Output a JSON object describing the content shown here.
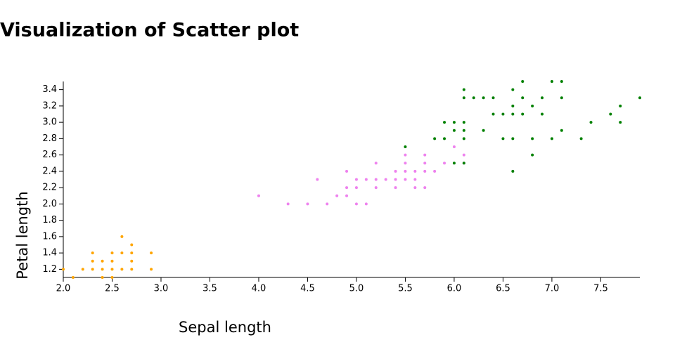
{
  "chart_data": {
    "type": "scatter",
    "title": "Visualization of Scatter plot",
    "x_label": "Sepal length",
    "y_label": "Petal length",
    "xlim": [
      2.0,
      7.9
    ],
    "ylim": [
      1.1,
      3.5
    ],
    "xticks": [
      {
        "value": 2,
        "label": "2.0"
      },
      2.5,
      {
        "value": 3,
        "label": "3.0"
      },
      3.5,
      {
        "value": 4,
        "label": "4.0"
      },
      4.5,
      {
        "value": 5,
        "label": "5.0"
      },
      5.5,
      {
        "value": 6,
        "label": "6.0"
      },
      6.5,
      {
        "value": 7,
        "label": "7.0"
      },
      7.5
    ],
    "yticks": [
      1.2,
      1.4,
      1.6,
      1.8,
      {
        "value": 2,
        "label": "2.0"
      },
      2.2,
      2.4,
      2.6,
      2.8,
      {
        "value": 3,
        "label": "3.0"
      },
      3.2,
      3.4
    ],
    "series": [
      {
        "color": "#ffa500",
        "x": [
          2.0,
          2.1,
          2.2,
          2.3,
          2.3,
          2.3,
          2.4,
          2.4,
          2.4,
          2.5,
          2.5,
          2.5,
          2.5,
          2.6,
          2.6,
          2.6,
          2.7,
          2.7,
          2.7,
          2.7,
          2.9,
          2.9
        ],
        "values": [
          1.2,
          1.1,
          1.2,
          1.4,
          1.3,
          1.2,
          1.3,
          1.2,
          1.1,
          1.4,
          1.3,
          1.2,
          1.1,
          1.6,
          1.4,
          1.2,
          1.5,
          1.4,
          1.3,
          1.2,
          1.4,
          1.2
        ]
      },
      {
        "color": "#ee82ee",
        "x": [
          4.0,
          4.3,
          4.5,
          4.6,
          4.7,
          4.8,
          4.9,
          4.9,
          4.9,
          5.0,
          5.0,
          5.0,
          5.1,
          5.1,
          5.2,
          5.2,
          5.2,
          5.3,
          5.4,
          5.4,
          5.4,
          5.5,
          5.5,
          5.5,
          5.5,
          5.6,
          5.6,
          5.6,
          5.7,
          5.7,
          5.7,
          5.7,
          5.8,
          5.9,
          6.0,
          6.1,
          6.1
        ],
        "values": [
          2.1,
          2.0,
          2.0,
          2.3,
          2.0,
          2.1,
          2.4,
          2.2,
          2.1,
          2.3,
          2.2,
          2.0,
          2.3,
          2.0,
          2.5,
          2.3,
          2.2,
          2.3,
          2.4,
          2.3,
          2.2,
          2.6,
          2.5,
          2.4,
          2.3,
          2.4,
          2.3,
          2.2,
          2.6,
          2.5,
          2.4,
          2.2,
          2.4,
          2.5,
          2.7,
          2.6,
          2.5
        ]
      },
      {
        "color": "#008000",
        "x": [
          5.5,
          5.8,
          5.9,
          5.9,
          6.0,
          6.0,
          6.0,
          6.1,
          6.1,
          6.1,
          6.1,
          6.1,
          6.1,
          6.2,
          6.3,
          6.3,
          6.4,
          6.4,
          6.5,
          6.5,
          6.6,
          6.6,
          6.6,
          6.6,
          6.6,
          6.7,
          6.7,
          6.7,
          6.8,
          6.8,
          6.8,
          6.9,
          6.9,
          7.0,
          7.0,
          7.1,
          7.1,
          7.1,
          7.3,
          7.4,
          7.6,
          7.7,
          7.7,
          7.9
        ],
        "values": [
          2.7,
          2.8,
          3.0,
          2.8,
          3.0,
          2.9,
          2.5,
          3.4,
          3.3,
          3.0,
          2.9,
          2.8,
          2.5,
          3.3,
          3.3,
          2.9,
          3.3,
          3.1,
          3.1,
          2.8,
          3.4,
          3.2,
          3.1,
          2.8,
          2.4,
          3.5,
          3.3,
          3.1,
          3.2,
          2.8,
          2.6,
          3.3,
          3.1,
          3.5,
          2.8,
          3.5,
          3.3,
          2.9,
          2.8,
          3.0,
          3.1,
          3.2,
          3.0,
          3.3
        ]
      }
    ]
  }
}
